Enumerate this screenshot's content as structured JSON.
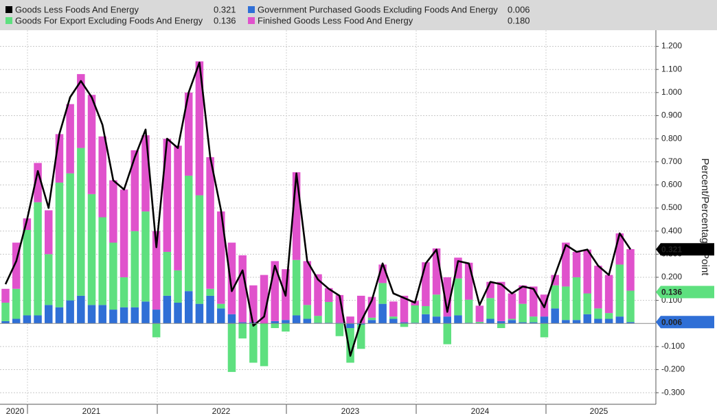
{
  "chart_data": {
    "type": "bar",
    "stacked": true,
    "y_axis_label": "Percent/Percentage Point",
    "categories": [
      null,
      null,
      null,
      null,
      null,
      null,
      null,
      null,
      null,
      null,
      null,
      null,
      null,
      null,
      null,
      null,
      null,
      null,
      null,
      null,
      null,
      null,
      null,
      null,
      null,
      null,
      null,
      null,
      null,
      null,
      null,
      null,
      null,
      null,
      null,
      null,
      null,
      null,
      null,
      null,
      null,
      null,
      null,
      null,
      null,
      null,
      null,
      null,
      null,
      null,
      null,
      null,
      null,
      null,
      null,
      null,
      null,
      null,
      null
    ],
    "year_labels": [
      "2020",
      "2021",
      "2022",
      "2023",
      "2024",
      "2025"
    ],
    "ylim": [
      -0.35,
      1.27
    ],
    "yticks": [
      {
        "value": -0.3,
        "label": "-0.300"
      },
      {
        "value": -0.2,
        "label": "-0.200"
      },
      {
        "value": -0.1,
        "label": "-0.100"
      },
      {
        "value": 0.1,
        "label": "0.100"
      },
      {
        "value": 0.2,
        "label": "0.200"
      },
      {
        "value": 0.3,
        "label": "0.300"
      },
      {
        "value": 0.4,
        "label": "0.400"
      },
      {
        "value": 0.5,
        "label": "0.500"
      },
      {
        "value": 0.6,
        "label": "0.600"
      },
      {
        "value": 0.7,
        "label": "0.700"
      },
      {
        "value": 0.8,
        "label": "0.800"
      },
      {
        "value": 0.9,
        "label": "0.900"
      },
      {
        "value": 1.0,
        "label": "1.000"
      },
      {
        "value": 1.1,
        "label": "1.100"
      },
      {
        "value": 1.2,
        "label": "1.200"
      }
    ],
    "grid": true,
    "series": [
      {
        "name": "Goods Less Foods And Energy",
        "type": "line",
        "color": "#000000",
        "values": [
          0.17,
          0.27,
          0.45,
          0.66,
          0.5,
          0.82,
          0.98,
          1.05,
          0.98,
          0.86,
          0.62,
          0.58,
          0.72,
          0.84,
          0.33,
          0.8,
          0.76,
          1.0,
          1.13,
          0.72,
          0.49,
          0.14,
          0.23,
          -0.01,
          0.03,
          0.25,
          0.12,
          0.65,
          0.27,
          0.19,
          0.15,
          0.12,
          -0.14,
          0.01,
          0.1,
          0.26,
          0.13,
          0.11,
          0.09,
          0.26,
          0.32,
          0.05,
          0.27,
          0.26,
          0.08,
          0.18,
          0.17,
          0.13,
          0.16,
          0.15,
          0.07,
          0.21,
          0.34,
          0.31,
          0.32,
          0.25,
          0.21,
          0.39,
          0.321
        ],
        "value_labels": [
          null,
          null,
          null,
          null,
          null,
          null,
          null,
          null,
          null,
          null,
          null,
          null,
          null,
          null,
          null,
          null,
          null,
          null,
          null,
          null,
          null,
          null,
          null,
          null,
          null,
          null,
          null,
          null,
          null,
          null,
          null,
          null,
          null,
          null,
          null,
          null,
          null,
          null,
          null,
          null,
          null,
          null,
          null,
          null,
          null,
          null,
          null,
          null,
          null,
          null,
          null,
          null,
          null,
          null,
          null,
          null,
          null,
          null,
          "0.321"
        ]
      },
      {
        "name": "Government Purchased Goods Excluding Foods And Energy",
        "color": "#2f6fd6",
        "values": [
          0.01,
          0.02,
          0.035,
          0.035,
          0.08,
          0.07,
          0.1,
          0.12,
          0.08,
          0.08,
          0.06,
          0.07,
          0.07,
          0.095,
          0.06,
          0.12,
          0.09,
          0.14,
          0.085,
          0.12,
          0.065,
          0.04,
          0.005,
          0.005,
          0,
          0.01,
          0.015,
          0.035,
          0.02,
          0.003,
          0.003,
          0.003,
          -0.02,
          -0.005,
          0.015,
          0.085,
          0.02,
          0.005,
          0.003,
          0.04,
          0.03,
          0.03,
          0.035,
          0.003,
          0.002,
          0.02,
          0.01,
          0.015,
          0.005,
          0.005,
          0.03,
          0.065,
          0.015,
          0.015,
          0.04,
          0.02,
          0.02,
          0.03,
          0.006
        ],
        "value_labels": [
          null,
          null,
          null,
          null,
          null,
          null,
          null,
          null,
          null,
          null,
          null,
          null,
          null,
          null,
          null,
          null,
          null,
          null,
          null,
          null,
          null,
          null,
          null,
          null,
          null,
          null,
          null,
          null,
          null,
          null,
          null,
          null,
          null,
          null,
          null,
          null,
          null,
          null,
          null,
          null,
          null,
          null,
          null,
          null,
          null,
          null,
          null,
          null,
          null,
          null,
          null,
          null,
          null,
          null,
          null,
          null,
          null,
          null,
          "0.006"
        ]
      },
      {
        "name": "Goods For Export Excluding Foods And Energy",
        "color": "#5ee07f",
        "values": [
          0.08,
          0.13,
          0.37,
          0.49,
          0.22,
          0.54,
          0.55,
          0.64,
          0.48,
          0.38,
          0.29,
          0.13,
          0.33,
          0.39,
          -0.06,
          0.19,
          0.14,
          0.5,
          0.47,
          0.03,
          0.02,
          -0.21,
          -0.065,
          -0.17,
          -0.185,
          -0.02,
          -0.035,
          0.24,
          0.06,
          0.03,
          0.09,
          -0.055,
          -0.15,
          -0.105,
          0.01,
          0.09,
          0.01,
          -0.015,
          0.075,
          0.035,
          0.095,
          -0.09,
          0.16,
          0.1,
          0.005,
          0.09,
          -0.02,
          0.005,
          0.08,
          0.025,
          -0.06,
          0.1,
          0.145,
          0.185,
          0.09,
          0.045,
          0.025,
          0.225,
          0.136
        ],
        "value_labels": [
          null,
          null,
          null,
          null,
          null,
          null,
          null,
          null,
          null,
          null,
          null,
          null,
          null,
          null,
          null,
          null,
          null,
          null,
          null,
          null,
          null,
          null,
          null,
          null,
          null,
          null,
          null,
          null,
          null,
          null,
          null,
          null,
          null,
          null,
          null,
          null,
          null,
          null,
          null,
          null,
          null,
          null,
          null,
          null,
          null,
          null,
          null,
          null,
          null,
          null,
          null,
          null,
          null,
          null,
          null,
          null,
          null,
          null,
          "0.136"
        ]
      },
      {
        "name": "Finished Goods Less Food And Energy",
        "color": "#e052cc",
        "values": [
          0.06,
          0.2,
          0.05,
          0.17,
          0.19,
          0.21,
          0.3,
          0.32,
          0.43,
          0.35,
          0.27,
          0.38,
          0.35,
          0.33,
          0.34,
          0.49,
          0.54,
          0.36,
          0.58,
          0.57,
          0.4,
          0.31,
          0.29,
          0.16,
          0.21,
          0.26,
          0.22,
          0.38,
          0.19,
          0.18,
          0.06,
          0.12,
          0.03,
          0.12,
          0.09,
          0.08,
          0.065,
          0.115,
          0.02,
          0.19,
          0.2,
          0.17,
          0.09,
          0.16,
          0.07,
          0.07,
          0.17,
          0.11,
          0.08,
          0.13,
          0.095,
          0.045,
          0.19,
          0.11,
          0.19,
          0.185,
          0.165,
          0.135,
          0.18
        ],
        "value_labels": [
          null,
          null,
          null,
          null,
          null,
          null,
          null,
          null,
          null,
          null,
          null,
          null,
          null,
          null,
          null,
          null,
          null,
          null,
          null,
          null,
          null,
          null,
          null,
          null,
          null,
          null,
          null,
          null,
          null,
          null,
          null,
          null,
          null,
          null,
          null,
          null,
          null,
          null,
          null,
          null,
          null,
          null,
          null,
          null,
          null,
          null,
          null,
          null,
          null,
          null,
          null,
          null,
          null,
          null,
          null,
          null,
          null,
          null,
          "0.180"
        ]
      }
    ]
  }
}
